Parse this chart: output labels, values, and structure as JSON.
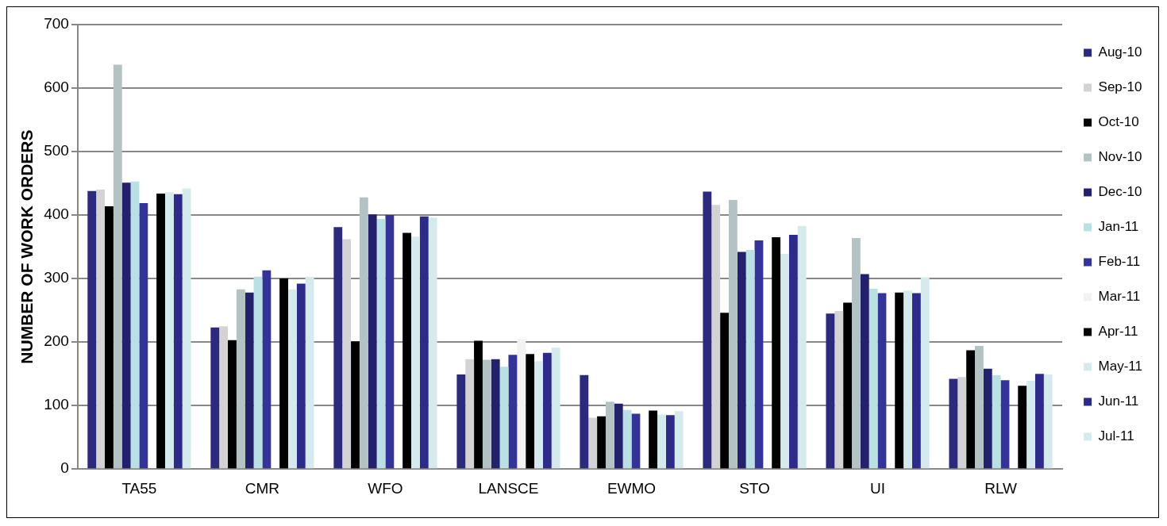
{
  "chart_data": {
    "type": "bar",
    "ylabel": "NUMBER OF WORK ORDERS",
    "categories": [
      "TA55",
      "CMR",
      "WFO",
      "LANSCE",
      "EWMO",
      "STO",
      "UI",
      "RLW"
    ],
    "series": [
      {
        "name": "Aug-10",
        "color": "#2b2a7f",
        "values": [
          438,
          223,
          381,
          149,
          148,
          437,
          245,
          142
        ]
      },
      {
        "name": "Sep-10",
        "color": "#d3d3d3",
        "values": [
          440,
          225,
          362,
          173,
          81,
          416,
          249,
          145
        ]
      },
      {
        "name": "Oct-10",
        "color": "#000000",
        "values": [
          414,
          203,
          201,
          202,
          83,
          246,
          262,
          187
        ]
      },
      {
        "name": "Nov-10",
        "color": "#b3c3c3",
        "values": [
          637,
          283,
          428,
          172,
          106,
          424,
          364,
          194
        ]
      },
      {
        "name": "Dec-10",
        "color": "#23206e",
        "values": [
          451,
          278,
          401,
          173,
          103,
          342,
          307,
          158
        ]
      },
      {
        "name": "Jan-11",
        "color": "#b9e1e3",
        "values": [
          453,
          303,
          394,
          161,
          93,
          345,
          284,
          148
        ]
      },
      {
        "name": "Feb-11",
        "color": "#33339a",
        "values": [
          419,
          313,
          400,
          180,
          87,
          360,
          277,
          140
        ]
      },
      {
        "name": "Mar-11",
        "color": "#f2f2f2",
        "values": [
          null,
          null,
          null,
          205,
          null,
          null,
          null,
          null
        ]
      },
      {
        "name": "Apr-11",
        "color": "#000000",
        "values": [
          434,
          300,
          372,
          181,
          92,
          365,
          278,
          131
        ]
      },
      {
        "name": "May-11",
        "color": "#d5eaec",
        "values": [
          436,
          283,
          366,
          170,
          86,
          339,
          281,
          139
        ]
      },
      {
        "name": "Jun-11",
        "color": "#2c2a8a",
        "values": [
          433,
          292,
          398,
          183,
          85,
          369,
          277,
          150
        ]
      },
      {
        "name": "Jul-11",
        "color": "#d5eaec",
        "values": [
          442,
          303,
          396,
          191,
          91,
          383,
          302,
          149
        ]
      }
    ],
    "ylim": [
      0,
      700
    ],
    "yticks": [
      0,
      100,
      200,
      300,
      400,
      500,
      600,
      700
    ],
    "grid": "y",
    "legend": "right"
  }
}
